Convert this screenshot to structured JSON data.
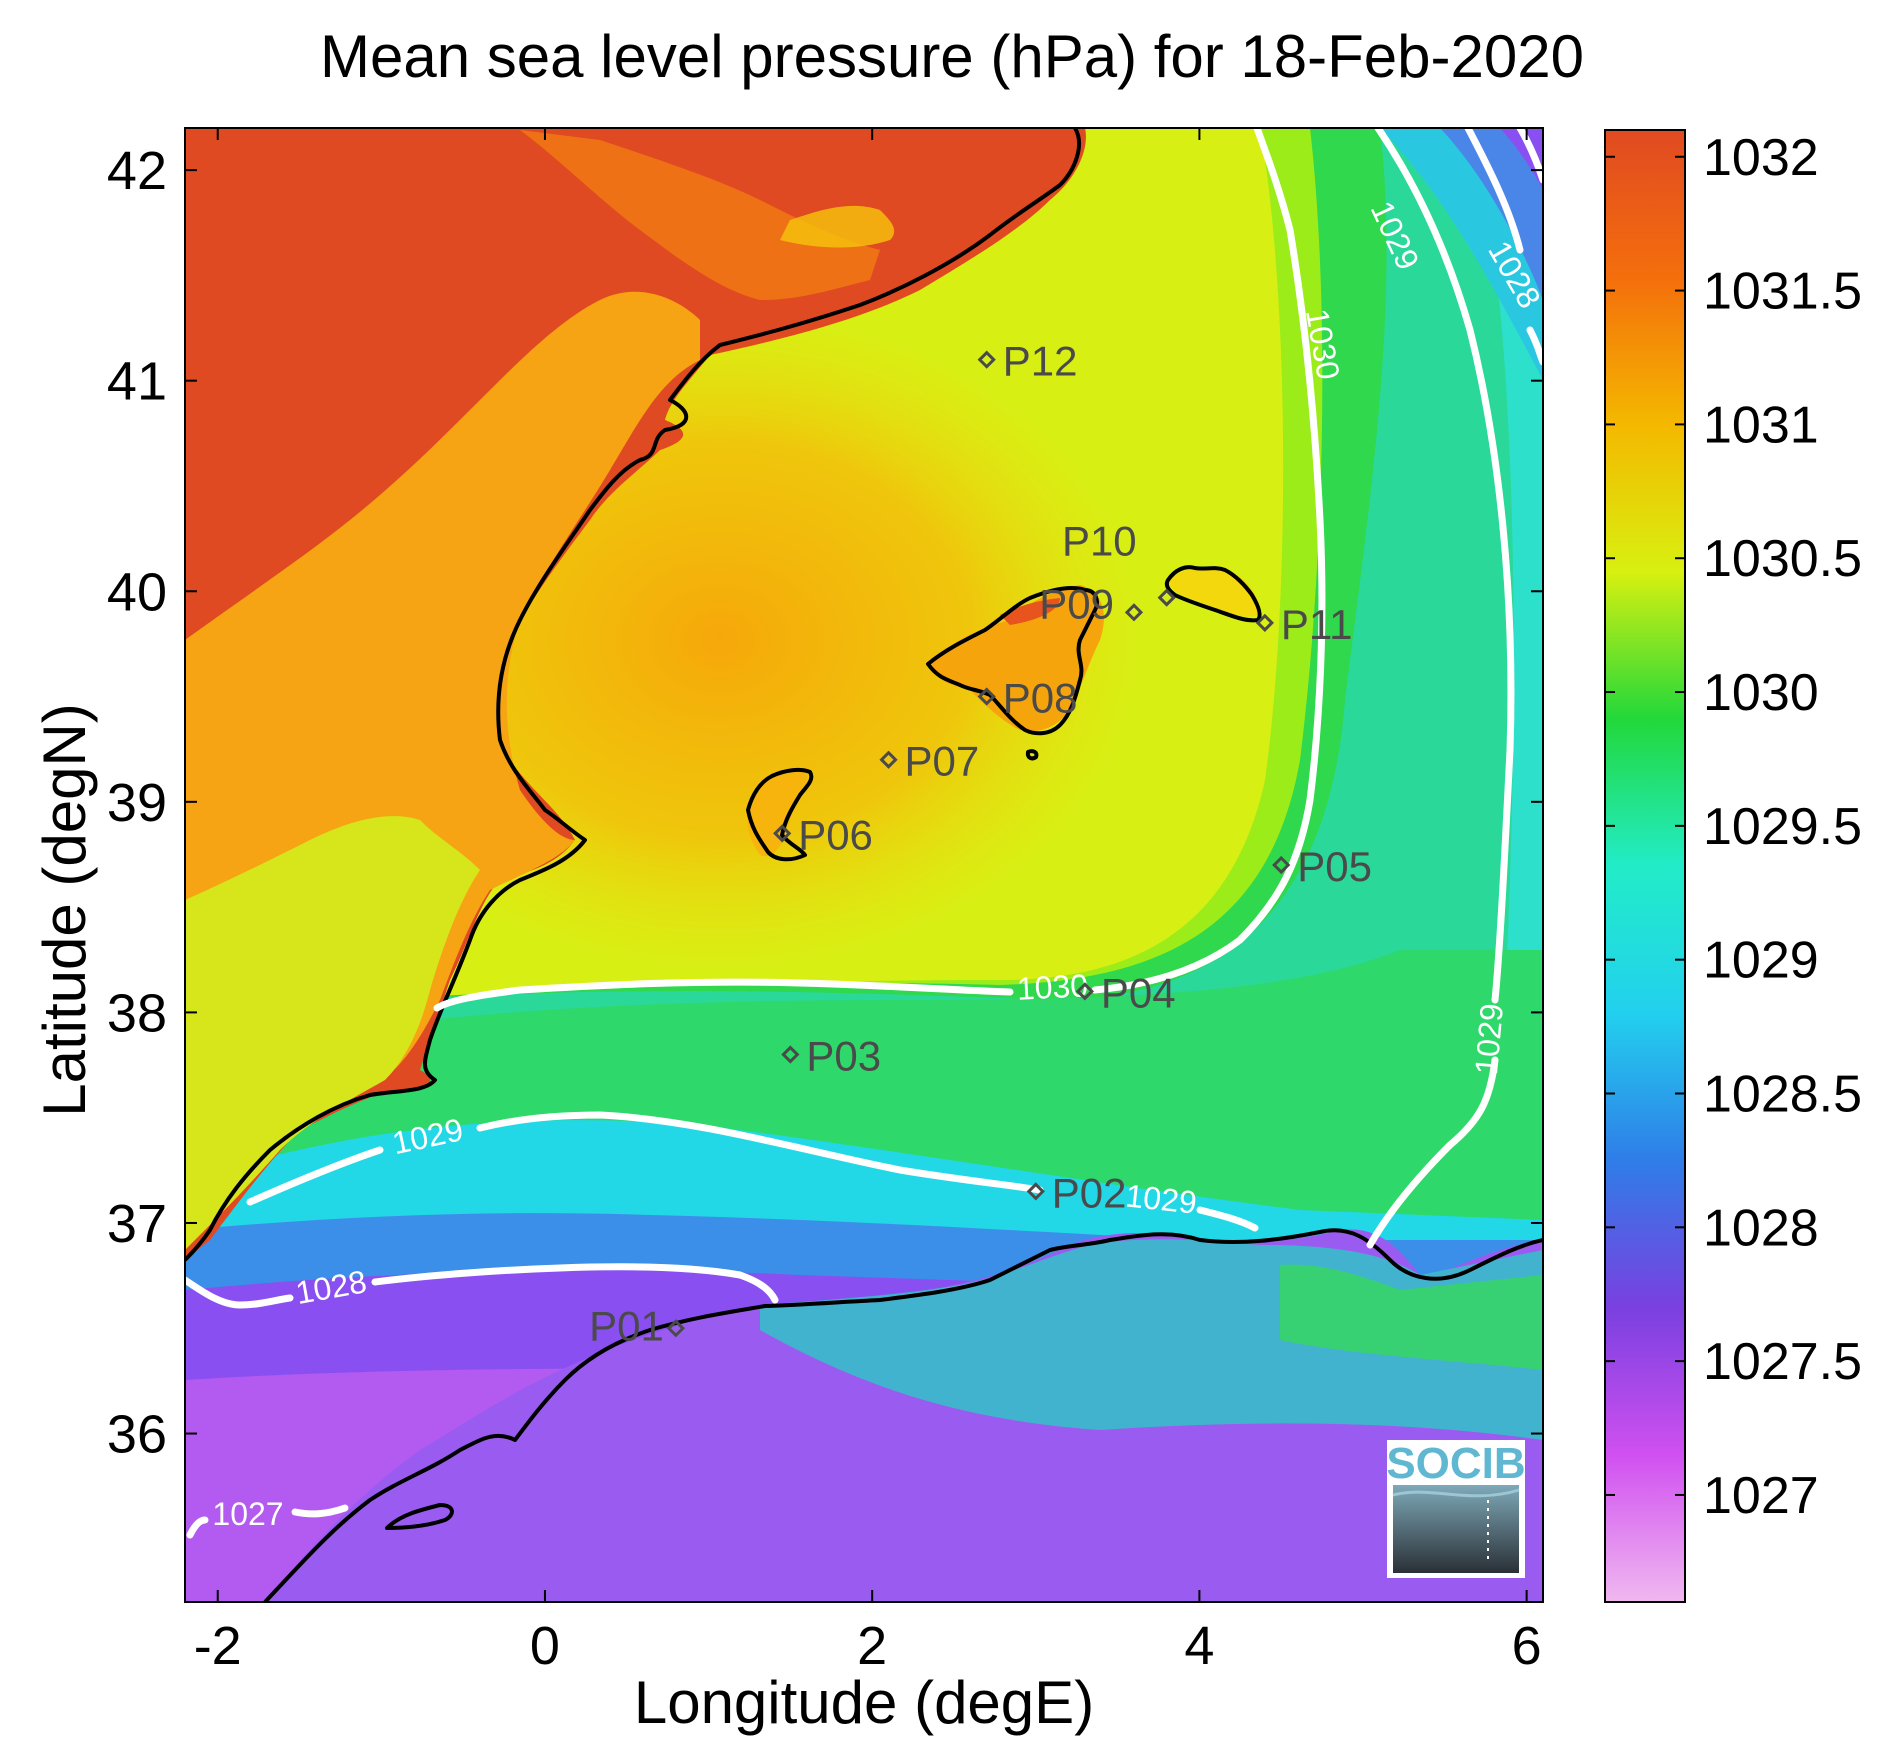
{
  "title": "Mean sea level pressure (hPa) for 18-Feb-2020",
  "x_axis": {
    "label": "Longitude (degE)",
    "range": [
      -2.2,
      6.1
    ],
    "ticks": [
      "-2",
      "0",
      "2",
      "4",
      "6"
    ]
  },
  "y_axis": {
    "label": "Latitude (degN)",
    "range": [
      35.2,
      42.2
    ],
    "ticks": [
      "36",
      "37",
      "38",
      "39",
      "40",
      "41",
      "42"
    ]
  },
  "colorbar": {
    "range": [
      1026.6,
      1032.1
    ],
    "ticks": [
      "1027",
      "1027.5",
      "1028",
      "1028.5",
      "1029",
      "1029.5",
      "1030",
      "1030.5",
      "1031",
      "1031.5",
      "1032"
    ],
    "colors": [
      "#f0b8f0",
      "#d050f0",
      "#7a40e0",
      "#2f7de8",
      "#22d0ee",
      "#22ecc8",
      "#22d83a",
      "#d8f010",
      "#f4b800",
      "#f46e0c",
      "#e04a22"
    ]
  },
  "stations": [
    {
      "name": "P01",
      "lon": 0.8,
      "lat": 36.5
    },
    {
      "name": "P02",
      "lon": 3.0,
      "lat": 37.15
    },
    {
      "name": "P03",
      "lon": 1.5,
      "lat": 37.8
    },
    {
      "name": "P04",
      "lon": 3.3,
      "lat": 38.1
    },
    {
      "name": "P05",
      "lon": 4.5,
      "lat": 38.7
    },
    {
      "name": "P06",
      "lon": 1.45,
      "lat": 38.85
    },
    {
      "name": "P07",
      "lon": 2.1,
      "lat": 39.2
    },
    {
      "name": "P08",
      "lon": 2.7,
      "lat": 39.5
    },
    {
      "name": "P09",
      "lon": 3.6,
      "lat": 39.9
    },
    {
      "name": "P10",
      "lon": 3.8,
      "lat": 39.97
    },
    {
      "name": "P11",
      "lon": 4.4,
      "lat": 39.85
    },
    {
      "name": "P12",
      "lon": 2.7,
      "lat": 41.1
    }
  ],
  "contour_labels": [
    "1030",
    "1030",
    "1029",
    "1029",
    "1029",
    "1029",
    "1028",
    "1028",
    "1027"
  ],
  "logo": {
    "text": "SOCIB"
  }
}
